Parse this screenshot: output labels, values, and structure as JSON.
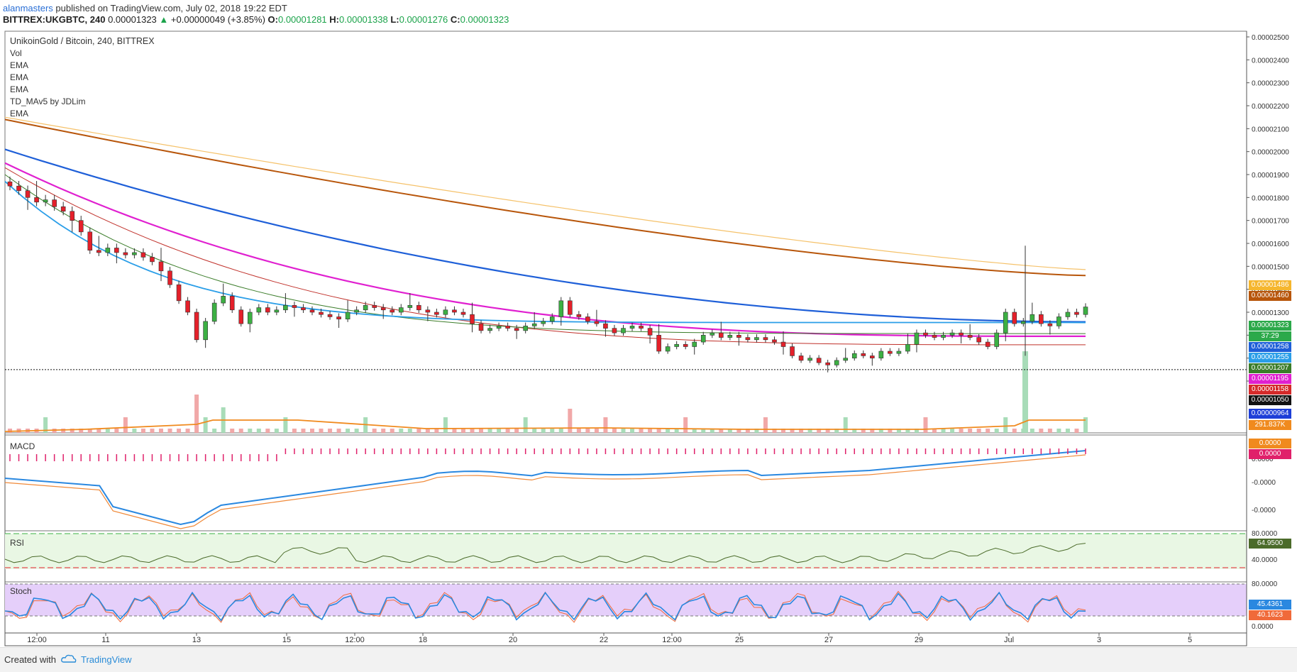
{
  "header": {
    "user": "alanmasters",
    "published": " published on TradingView.com, July 02, 2018 19:22 EDT",
    "symbol": "BITTREX:UKGBTC, 240",
    "last": "0.00001323",
    "change": "+0.00000049 (+3.85%)",
    "o_label": "O:",
    "o": "0.00001281",
    "h_label": "H:",
    "h": "0.00001338",
    "l_label": "L:",
    "l": "0.00001276",
    "c_label": "C:",
    "c": "0.00001323"
  },
  "legend": {
    "title": "UnikoinGold / Bitcoin, 240, BITTREX",
    "items": [
      "Vol",
      "EMA",
      "EMA",
      "EMA",
      "TD_MAv5 by JDLim",
      "EMA"
    ]
  },
  "panes": {
    "macd": "MACD",
    "rsi": "RSI",
    "stoch": "Stoch"
  },
  "price_tags": [
    {
      "text": "0.00001486",
      "color": "#f5b62e"
    },
    {
      "text": "0.00001460",
      "color": "#b8560b"
    },
    {
      "text": "0.00001323",
      "color": "#2ca94a"
    },
    {
      "text": "37:29",
      "color": "#2ca94a"
    },
    {
      "text": "0.00001258",
      "color": "#1e5fd8"
    },
    {
      "text": "0.00001255",
      "color": "#2a9ee8"
    },
    {
      "text": "0.00001207",
      "color": "#3b7d2a"
    },
    {
      "text": "0.00001195",
      "color": "#e020d0"
    },
    {
      "text": "0.00001158",
      "color": "#d42a2a"
    },
    {
      "text": "0.00001050",
      "color": "#111111"
    },
    {
      "text": "0.00000964",
      "color": "#1e3fd8"
    },
    {
      "text": "291.837K",
      "color": "#f08a1e"
    }
  ],
  "osc_tags": [
    {
      "text": "0.0000",
      "color": "#f08a1e"
    },
    {
      "text": "0.0000",
      "color": "#e0206a"
    },
    {
      "text": "64.9500",
      "color": "#4b6b2a"
    },
    {
      "text": "45.4361",
      "color": "#2a88e0"
    },
    {
      "text": "40.1623",
      "color": "#f06a3a"
    }
  ],
  "footer": {
    "created": "Created with",
    "brand": "TradingView"
  },
  "chart_data": {
    "type": "candlestick",
    "title": "UnikoinGold / Bitcoin, 240, BITTREX",
    "x_ticks": [
      "12:00",
      "11",
      "13",
      "15",
      "12:00",
      "18",
      "20",
      "22",
      "12:00",
      "25",
      "27",
      "29",
      "Jul",
      "3",
      "5"
    ],
    "y_ticks": [
      "0.00002500",
      "0.00002400",
      "0.00002300",
      "0.00002200",
      "0.00002100",
      "0.00002000",
      "0.00001900",
      "0.00001800",
      "0.00001700",
      "0.00001600",
      "0.00001500",
      "0.00001400",
      "0.00001300",
      "0.00001200",
      "0.00001100",
      "0.00001000"
    ],
    "ylim": [
      9.3e-06,
      2.52e-05
    ],
    "macd_ticks": [
      "0.0000",
      "-0.0000",
      "-0.0000"
    ],
    "rsi_ticks": [
      "80.0000",
      "40.0000"
    ],
    "stoch_ticks": [
      "80.0000",
      "0.0000"
    ],
    "close_path": [
      1.85e-05,
      1.83e-05,
      1.8e-05,
      1.78e-05,
      1.79e-05,
      1.76e-05,
      1.74e-05,
      1.7e-05,
      1.65e-05,
      1.57e-05,
      1.56e-05,
      1.58e-05,
      1.56e-05,
      1.55e-05,
      1.56e-05,
      1.54e-05,
      1.52e-05,
      1.48e-05,
      1.42e-05,
      1.35e-05,
      1.3e-05,
      1.18e-05,
      1.26e-05,
      1.34e-05,
      1.37e-05,
      1.31e-05,
      1.25e-05,
      1.3e-05,
      1.32e-05,
      1.3e-05,
      1.31e-05,
      1.33e-05,
      1.32e-05,
      1.31e-05,
      1.3e-05,
      1.29e-05,
      1.28e-05,
      1.27e-05,
      1.3e-05,
      1.31e-05,
      1.33e-05,
      1.32e-05,
      1.31e-05,
      1.3e-05,
      1.32e-05,
      1.33e-05,
      1.31e-05,
      1.3e-05,
      1.29e-05,
      1.31e-05,
      1.3e-05,
      1.29e-05,
      1.25e-05,
      1.22e-05,
      1.23e-05,
      1.24e-05,
      1.23e-05,
      1.22e-05,
      1.24e-05,
      1.25e-05,
      1.26e-05,
      1.28e-05,
      1.35e-05,
      1.29e-05,
      1.28e-05,
      1.26e-05,
      1.25e-05,
      1.23e-05,
      1.21e-05,
      1.23e-05,
      1.24e-05,
      1.23e-05,
      1.2e-05,
      1.13e-05,
      1.15e-05,
      1.16e-05,
      1.15e-05,
      1.17e-05,
      1.2e-05,
      1.21e-05,
      1.19e-05,
      1.2e-05,
      1.19e-05,
      1.18e-05,
      1.19e-05,
      1.18e-05,
      1.17e-05,
      1.15e-05,
      1.11e-05,
      1.09e-05,
      1.1e-05,
      1.08e-05,
      1.07e-05,
      1.09e-05,
      1.1e-05,
      1.12e-05,
      1.11e-05,
      1.1e-05,
      1.13e-05,
      1.12e-05,
      1.13e-05,
      1.16e-05,
      1.21e-05,
      1.2e-05,
      1.19e-05,
      1.2e-05,
      1.21e-05,
      1.2e-05,
      1.19e-05,
      1.17e-05,
      1.15e-05,
      1.21e-05,
      1.3e-05,
      1.25e-05,
      1.26e-05,
      1.29e-05,
      1.25e-05,
      1.24e-05,
      1.28e-05,
      1.3e-05,
      1.29e-05,
      1.323e-05
    ]
  }
}
